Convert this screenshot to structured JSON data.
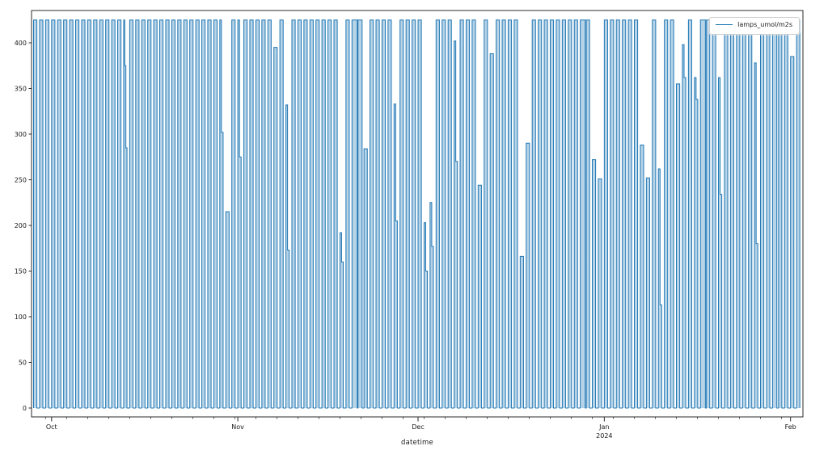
{
  "chart_data": {
    "type": "line",
    "title": "",
    "xlabel": "datetime",
    "ylabel": "",
    "legend": {
      "label": "lamps_umol/m2s",
      "position": "upper right"
    },
    "series_color": "#1f77b4",
    "series_fill_color": "rgba(31,119,180,0.32)",
    "grid": false,
    "x_axis": {
      "start_date": "2023-09-28",
      "end_date": "2024-02-02",
      "num_days": 128,
      "major_ticks": [
        {
          "label": "Oct",
          "day_index": 3
        },
        {
          "label": "Nov",
          "day_index": 34
        },
        {
          "label": "Dec",
          "day_index": 64
        },
        {
          "label": "Jan",
          "day_index": 95,
          "sublabel": "2024"
        },
        {
          "label": "Feb",
          "day_index": 126
        }
      ],
      "minor_tick_step_days": 3.5,
      "minor_tick_start_index": 2
    },
    "y_axis": {
      "ticks": [
        0,
        50,
        100,
        150,
        200,
        250,
        300,
        350,
        400
      ],
      "lim": [
        -10,
        434
      ]
    },
    "waveform": {
      "description": "Daily lamp on/off square pulses: value is 0 at night and steps up to the day's peak PPFD during the photoperiod. Levels arrays list stepped plateau values within a day.",
      "baseline": 0,
      "default_peak": 425,
      "exception_days": [
        {
          "date": "2023-10-13",
          "day_index": 15,
          "levels": [
            425,
            375,
            285
          ]
        },
        {
          "date": "2023-10-29",
          "day_index": 31,
          "levels": [
            425,
            302
          ]
        },
        {
          "date": "2023-10-30",
          "day_index": 32,
          "levels": [
            215
          ]
        },
        {
          "date": "2023-11-01",
          "day_index": 34,
          "levels": [
            425,
            275
          ]
        },
        {
          "date": "2023-11-07",
          "day_index": 40,
          "levels": [
            395
          ]
        },
        {
          "date": "2023-11-09",
          "day_index": 42,
          "levels": [
            332,
            173
          ]
        },
        {
          "date": "2023-11-18",
          "day_index": 51,
          "levels": [
            192,
            160
          ]
        },
        {
          "date": "2023-11-20",
          "day_index": 53,
          "levels": [
            425
          ],
          "width_scale": 1.6
        },
        {
          "date": "2023-11-21",
          "day_index": 54,
          "levels": [
            425
          ],
          "width_scale": 1.25
        },
        {
          "date": "2023-11-22",
          "day_index": 55,
          "levels": [
            284
          ]
        },
        {
          "date": "2023-11-27",
          "day_index": 60,
          "levels": [
            333,
            205
          ]
        },
        {
          "date": "2023-12-02",
          "day_index": 65,
          "levels": [
            203,
            150
          ]
        },
        {
          "date": "2023-12-03",
          "day_index": 66,
          "levels": [
            225,
            177
          ]
        },
        {
          "date": "2023-12-07",
          "day_index": 70,
          "levels": [
            402,
            270
          ]
        },
        {
          "date": "2023-12-11",
          "day_index": 74,
          "levels": [
            244
          ]
        },
        {
          "date": "2023-12-13",
          "day_index": 76,
          "levels": [
            388
          ]
        },
        {
          "date": "2023-12-18",
          "day_index": 81,
          "levels": [
            166
          ]
        },
        {
          "date": "2023-12-19",
          "day_index": 82,
          "levels": [
            290
          ]
        },
        {
          "date": "2023-12-28",
          "day_index": 91,
          "levels": [
            425
          ],
          "width_scale": 1.5
        },
        {
          "date": "2023-12-30",
          "day_index": 93,
          "levels": [
            272
          ]
        },
        {
          "date": "2023-12-31",
          "day_index": 94,
          "levels": [
            251
          ]
        },
        {
          "date": "2024-01-07",
          "day_index": 101,
          "levels": [
            288
          ]
        },
        {
          "date": "2024-01-08",
          "day_index": 102,
          "levels": [
            252
          ]
        },
        {
          "date": "2024-01-10",
          "day_index": 104,
          "levels": [
            262,
            113
          ]
        },
        {
          "date": "2024-01-13",
          "day_index": 107,
          "levels": [
            355
          ]
        },
        {
          "date": "2024-01-14",
          "day_index": 108,
          "levels": [
            398,
            362
          ]
        },
        {
          "date": "2024-01-16",
          "day_index": 110,
          "levels": [
            362,
            338
          ]
        },
        {
          "date": "2024-01-17",
          "day_index": 111,
          "levels": [
            425
          ],
          "width_scale": 1.5
        },
        {
          "date": "2024-01-20",
          "day_index": 114,
          "levels": [
            362,
            234
          ]
        },
        {
          "date": "2024-01-26",
          "day_index": 120,
          "levels": [
            378,
            180
          ]
        },
        {
          "date": "2024-01-29",
          "day_index": 123,
          "levels": [
            425
          ],
          "width_scale": 1.3
        },
        {
          "date": "2024-02-01",
          "day_index": 126,
          "levels": [
            385
          ]
        }
      ]
    }
  }
}
